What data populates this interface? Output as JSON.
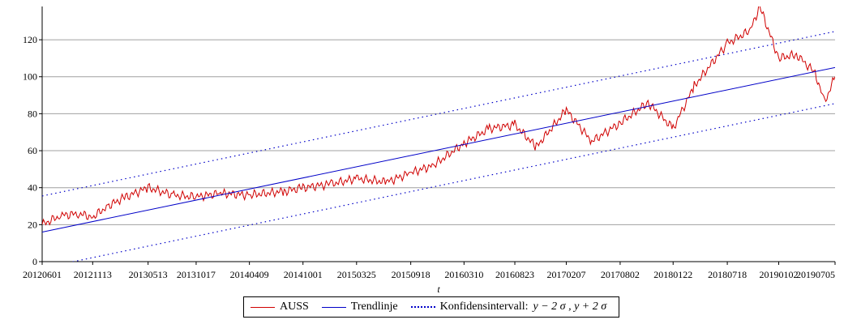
{
  "chart_data": {
    "type": "line",
    "xlabel": "t",
    "ylabel": "",
    "x_tick_labels": [
      "20120601",
      "20121113",
      "20130513",
      "20131017",
      "20140409",
      "20141001",
      "20150325",
      "20150918",
      "20160310",
      "20160823",
      "20170207",
      "20170802",
      "20180122",
      "20180718",
      "20190102",
      "20190705"
    ],
    "y_ticks": [
      0,
      20,
      40,
      60,
      80,
      100,
      120
    ],
    "ylim": [
      0,
      138
    ],
    "grid": "horizontal",
    "series": [
      {
        "name": "AUSS",
        "color": "#d00000",
        "style": "solid",
        "x": [
          "20120601",
          "20120801",
          "20121001",
          "20121113",
          "20130101",
          "20130301",
          "20130513",
          "20130801",
          "20131017",
          "20140101",
          "20140409",
          "20140801",
          "20141001",
          "20150101",
          "20150325",
          "20150701",
          "20150918",
          "20151201",
          "20160310",
          "20160601",
          "20160823",
          "20161101",
          "20170207",
          "20170501",
          "20170802",
          "20171101",
          "20180122",
          "20180401",
          "20180718",
          "20181001",
          "20181101",
          "20190102",
          "20190301",
          "20190501",
          "20190601",
          "20190705"
        ],
        "values": [
          20,
          25,
          26,
          24,
          30,
          35,
          40,
          36,
          35,
          37,
          36,
          38,
          40,
          42,
          45,
          43,
          48,
          52,
          64,
          72,
          74,
          62,
          82,
          65,
          75,
          86,
          72,
          95,
          118,
          125,
          138,
          110,
          112,
          102,
          86,
          100
        ]
      },
      {
        "name": "Trendlinje",
        "color": "#0000c8",
        "style": "solid",
        "x": [
          "20120601",
          "20190705"
        ],
        "values": [
          16,
          105
        ]
      },
      {
        "name": "Konfidensintervall: y − 2σ, y + 2σ",
        "color": "#0000c8",
        "style": "dotted",
        "x": [
          "20120601",
          "20190705"
        ],
        "upper": [
          35.5,
          124.5
        ],
        "lower": [
          -3.5,
          85.5
        ]
      }
    ]
  },
  "legend": {
    "auss": "AUSS",
    "trend": "Trendlinje",
    "conf": "Konfidensintervall:",
    "conf_math": "y − 2 σ , y + 2 σ"
  }
}
